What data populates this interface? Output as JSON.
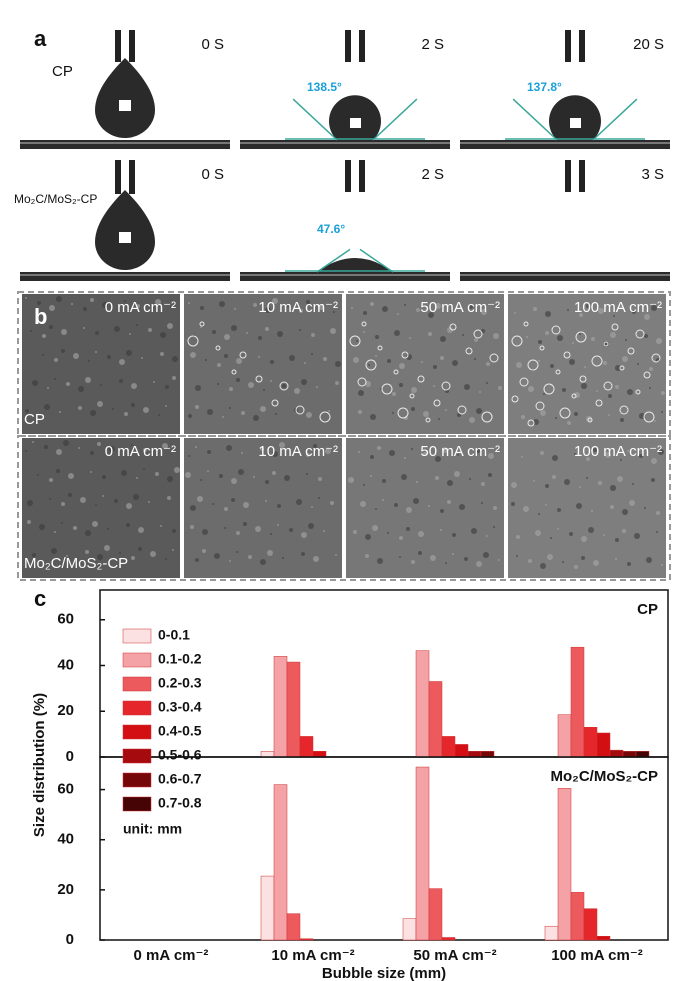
{
  "panel_a": {
    "label": "a",
    "rows": [
      {
        "sample": "CP",
        "frames": [
          {
            "time": "0 S"
          },
          {
            "time": "2 S",
            "angle": "138.5°"
          },
          {
            "time": "20 S",
            "angle": "137.8°"
          }
        ]
      },
      {
        "sample": "Mo₂C/MoS₂-CP",
        "frames": [
          {
            "time": "0 S"
          },
          {
            "time": "2 S",
            "angle": "47.6°"
          },
          {
            "time": "3 S"
          }
        ]
      }
    ]
  },
  "panel_b": {
    "label": "b",
    "rows": [
      {
        "sample": "CP",
        "frames": [
          "0 mA cm⁻²",
          "10 mA cm⁻²",
          "50 mA cm⁻²",
          "100 mA cm⁻²"
        ]
      },
      {
        "sample": "Mo₂C/MoS₂-CP",
        "frames": [
          "0 mA cm⁻²",
          "10 mA cm⁻²",
          "50 mA cm⁻²",
          "100 mA cm⁻²"
        ]
      }
    ]
  },
  "panel_c": {
    "label": "c"
  },
  "chart_data": [
    {
      "type": "bar",
      "title": "CP",
      "y_label": "Size distribution (%)",
      "legend_note": "unit: mm",
      "ylim": [
        0,
        73
      ],
      "yticks": [
        0,
        20,
        40,
        60
      ],
      "series": [
        {
          "name": "0-0.1",
          "color": "#fbe1e1",
          "values": [
            0,
            2.5,
            0,
            0
          ]
        },
        {
          "name": "0.1-0.2",
          "color": "#f4a2a5",
          "values": [
            0,
            44,
            46.5,
            18.5
          ]
        },
        {
          "name": "0.2-0.3",
          "color": "#ec5a5e",
          "values": [
            0,
            41.5,
            33,
            48
          ]
        },
        {
          "name": "0.3-0.4",
          "color": "#e5262b",
          "values": [
            0,
            9,
            9,
            13
          ]
        },
        {
          "name": "0.4-0.5",
          "color": "#d30f14",
          "values": [
            0,
            2.5,
            5.5,
            10.5
          ]
        },
        {
          "name": "0.5-0.6",
          "color": "#a50a0e",
          "values": [
            0,
            0,
            2.5,
            3
          ]
        },
        {
          "name": "0.6-0.7",
          "color": "#760709",
          "values": [
            0,
            0,
            2.5,
            2.5
          ]
        },
        {
          "name": "0.7-0.8",
          "color": "#470405",
          "values": [
            0,
            0,
            0,
            2.5
          ]
        }
      ]
    },
    {
      "type": "bar",
      "title": "Mo₂C/MoS₂-CP",
      "x_label": "Bubble size (mm)",
      "categories": [
        "0 mA cm⁻²",
        "10 mA cm⁻²",
        "50 mA cm⁻²",
        "100 mA cm⁻²"
      ],
      "ylim": [
        0,
        73
      ],
      "yticks": [
        0,
        20,
        40,
        60
      ],
      "series": [
        {
          "values": [
            0,
            25.5,
            8.5,
            5.5
          ]
        },
        {
          "values": [
            0,
            62,
            69,
            60.5
          ]
        },
        {
          "values": [
            0,
            10.5,
            20.5,
            19
          ]
        },
        {
          "values": [
            0,
            0.5,
            1,
            12.5
          ]
        },
        {
          "values": [
            0,
            0,
            0,
            1.5
          ]
        },
        {
          "values": [
            0,
            0,
            0,
            0
          ]
        },
        {
          "values": [
            0,
            0,
            0,
            0
          ]
        },
        {
          "values": [
            0,
            0,
            0,
            0
          ]
        }
      ]
    }
  ]
}
